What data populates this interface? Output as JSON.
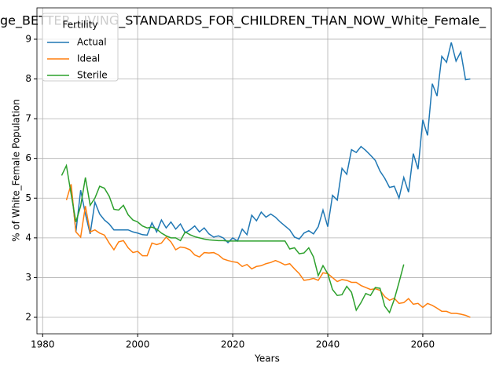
{
  "chart_data": {
    "type": "line",
    "title": "ge_BETTER_LIVING_STANDARDS_FOR_CHILDREN_THAN_NOW_White_Female_",
    "xlabel": "Years",
    "ylabel": "% of White_Female Population",
    "legend_title": "Fertility",
    "legend": "upper left",
    "grid": true,
    "xlim": [
      1978.8,
      2074.4
    ],
    "ylim": [
      1.585,
      9.79
    ],
    "xticks": [
      1980,
      2000,
      2020,
      2040,
      2060
    ],
    "yticks": [
      2,
      3,
      4,
      5,
      6,
      7,
      8,
      9
    ],
    "x": [
      1984,
      1985,
      1986,
      1987,
      1988,
      1989,
      1990,
      1991,
      1992,
      1993,
      1994,
      1995,
      1996,
      1997,
      1998,
      1999,
      2000,
      2001,
      2002,
      2003,
      2004,
      2005,
      2006,
      2007,
      2008,
      2009,
      2010,
      2011,
      2012,
      2013,
      2014,
      2015,
      2016,
      2017,
      2018,
      2019,
      2020,
      2021,
      2022,
      2023,
      2024,
      2025,
      2026,
      2027,
      2028,
      2029,
      2030,
      2031,
      2032,
      2033,
      2034,
      2035,
      2036,
      2037,
      2038,
      2039,
      2040,
      2041,
      2042,
      2043,
      2044,
      2045,
      2046,
      2047,
      2048,
      2049,
      2050,
      2051,
      2052,
      2053,
      2054,
      2055,
      2056,
      2057,
      2058,
      2059,
      2060,
      2061,
      2062,
      2063,
      2064,
      2065,
      2066,
      2067,
      2068,
      2069,
      2070
    ],
    "series": [
      {
        "name": "Actual",
        "color": "#1f77b4",
        "values": [
          null,
          null,
          5.3,
          4.15,
          5.2,
          4.6,
          4.1,
          4.9,
          4.6,
          4.45,
          4.35,
          4.2,
          4.2,
          4.2,
          4.2,
          4.15,
          4.12,
          4.08,
          4.07,
          4.38,
          4.15,
          4.45,
          4.25,
          4.4,
          4.22,
          4.35,
          4.13,
          4.2,
          4.3,
          4.15,
          4.25,
          4.1,
          4.02,
          4.05,
          4.0,
          3.88,
          4.0,
          3.92,
          4.22,
          4.08,
          4.57,
          4.43,
          4.65,
          4.52,
          4.6,
          4.52,
          4.4,
          4.3,
          4.2,
          4.02,
          3.97,
          4.12,
          4.18,
          4.1,
          4.28,
          4.7,
          4.28,
          5.07,
          4.95,
          5.75,
          5.6,
          6.22,
          6.15,
          6.3,
          6.2,
          6.08,
          5.95,
          5.68,
          5.5,
          5.27,
          5.3,
          5.0,
          5.52,
          5.15,
          6.12,
          5.73,
          6.97,
          6.58,
          7.88,
          7.57,
          8.57,
          8.42,
          8.92,
          8.45,
          8.68,
          7.98,
          8.0
        ]
      },
      {
        "name": "Ideal",
        "color": "#ff7f0e",
        "values": [
          null,
          4.95,
          5.35,
          4.15,
          4.02,
          4.8,
          4.15,
          4.2,
          4.12,
          4.07,
          3.87,
          3.7,
          3.9,
          3.93,
          3.75,
          3.63,
          3.66,
          3.55,
          3.55,
          3.87,
          3.83,
          3.87,
          4.02,
          3.9,
          3.7,
          3.77,
          3.75,
          3.7,
          3.57,
          3.52,
          3.63,
          3.62,
          3.63,
          3.57,
          3.47,
          3.43,
          3.4,
          3.38,
          3.28,
          3.33,
          3.22,
          3.28,
          3.3,
          3.35,
          3.38,
          3.43,
          3.38,
          3.32,
          3.35,
          3.22,
          3.1,
          2.93,
          2.95,
          2.98,
          2.93,
          3.12,
          3.1,
          3.0,
          2.9,
          2.95,
          2.93,
          2.88,
          2.88,
          2.8,
          2.75,
          2.7,
          2.72,
          2.68,
          2.52,
          2.43,
          2.48,
          2.35,
          2.37,
          2.47,
          2.33,
          2.35,
          2.25,
          2.35,
          2.3,
          2.23,
          2.15,
          2.15,
          2.1,
          2.1,
          2.08,
          2.05,
          2.0
        ]
      },
      {
        "name": "Sterile",
        "color": "#2ca02c",
        "values": [
          5.57,
          5.82,
          5.1,
          4.4,
          4.8,
          5.52,
          4.82,
          5.0,
          5.3,
          5.25,
          5.05,
          4.72,
          4.7,
          4.82,
          4.58,
          4.45,
          4.4,
          4.3,
          4.25,
          4.27,
          4.22,
          4.12,
          4.05,
          4.0,
          4.0,
          3.93,
          4.15,
          4.08,
          4.03,
          4.0,
          3.97,
          3.95,
          3.94,
          3.93,
          3.93,
          3.92,
          3.92,
          3.92,
          3.92,
          3.92,
          3.92,
          3.92,
          3.92,
          3.92,
          3.92,
          3.92,
          3.92,
          3.92,
          3.72,
          3.75,
          3.6,
          3.62,
          3.75,
          3.52,
          3.05,
          3.3,
          3.1,
          2.7,
          2.55,
          2.57,
          2.78,
          2.63,
          2.18,
          2.37,
          2.6,
          2.55,
          2.75,
          2.73,
          2.28,
          2.12,
          2.45,
          2.88,
          3.33,
          null,
          null,
          null,
          null,
          null,
          null,
          null,
          null,
          null,
          null,
          null,
          null,
          null,
          null
        ]
      }
    ]
  }
}
